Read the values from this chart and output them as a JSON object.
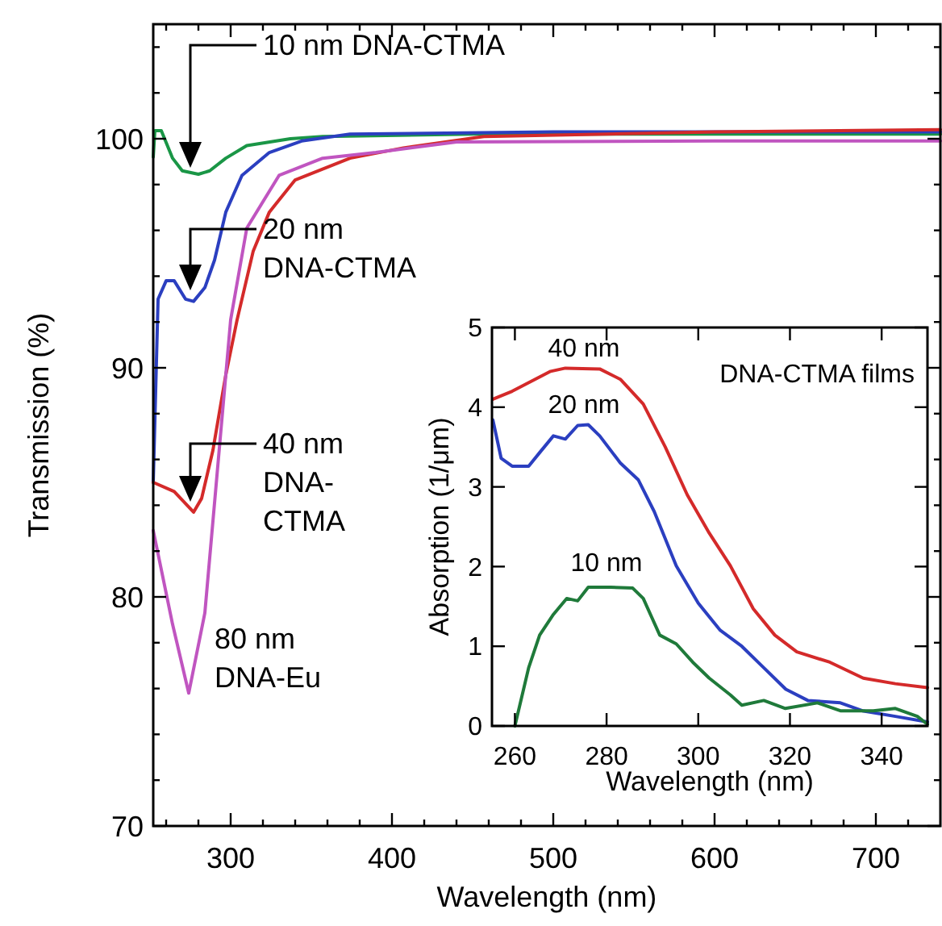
{
  "chart_data": [
    {
      "type": "line",
      "xlabel": "Wavelength (nm)",
      "ylabel": "Transmission (%)",
      "xlim": [
        252,
        740
      ],
      "ylim": [
        70,
        105
      ],
      "xticks": [
        {
          "value": 260,
          "label": null
        },
        {
          "value": 280,
          "label": null
        },
        300,
        {
          "value": 320,
          "label": null
        },
        {
          "value": 340,
          "label": null
        },
        {
          "value": 360,
          "label": null
        },
        {
          "value": 380,
          "label": null
        },
        400,
        {
          "value": 420,
          "label": null
        },
        {
          "value": 440,
          "label": null
        },
        {
          "value": 460,
          "label": null
        },
        {
          "value": 480,
          "label": null
        },
        500,
        {
          "value": 520,
          "label": null
        },
        {
          "value": 540,
          "label": null
        },
        {
          "value": 560,
          "label": null
        },
        {
          "value": 580,
          "label": null
        },
        600,
        {
          "value": 620,
          "label": null
        },
        {
          "value": 640,
          "label": null
        },
        {
          "value": 660,
          "label": null
        },
        {
          "value": 680,
          "label": null
        },
        700,
        {
          "value": 720,
          "label": null
        }
      ],
      "yticks": [
        70,
        {
          "value": 72,
          "label": null
        },
        {
          "value": 74,
          "label": null
        },
        {
          "value": 76,
          "label": null
        },
        {
          "value": 78,
          "label": null
        },
        80,
        {
          "value": 82,
          "label": null
        },
        {
          "value": 84,
          "label": null
        },
        {
          "value": 86,
          "label": null
        },
        {
          "value": 88,
          "label": null
        },
        90,
        {
          "value": 92,
          "label": null
        },
        {
          "value": 94,
          "label": null
        },
        {
          "value": 96,
          "label": null
        },
        {
          "value": 98,
          "label": null
        },
        100,
        {
          "value": 102,
          "label": null
        },
        {
          "value": 104,
          "label": null
        }
      ],
      "series": [
        {
          "color": "#1a9646",
          "x": [
            252,
            253,
            257,
            264,
            270,
            280,
            287,
            297,
            310,
            337,
            357,
            450,
            600,
            740
          ],
          "values": [
            99.2,
            100.35,
            100.35,
            99.15,
            98.6,
            98.45,
            98.6,
            99.15,
            99.7,
            100,
            100.1,
            100.2,
            100.2,
            100.2
          ]
        },
        {
          "color": "#2b3fc0",
          "x": [
            252,
            255,
            260,
            265,
            272,
            277,
            284,
            290,
            297,
            307,
            324,
            344,
            374,
            500,
            740
          ],
          "values": [
            85,
            93,
            93.8,
            93.8,
            93,
            92.9,
            93.5,
            94.7,
            96.8,
            98.4,
            99.4,
            99.9,
            100.2,
            100.3,
            100.3
          ]
        },
        {
          "color": "#d42a2a",
          "x": [
            252,
            265,
            277,
            282,
            289,
            297,
            304,
            314,
            324,
            340,
            374,
            407,
            457,
            600,
            740
          ],
          "values": [
            85,
            84.6,
            83.7,
            84.3,
            86.4,
            89.7,
            92.1,
            95.1,
            96.8,
            98.2,
            99.15,
            99.6,
            100.1,
            100.3,
            100.4
          ]
        },
        {
          "color": "#c055c0",
          "x": [
            252,
            264,
            274,
            284,
            290,
            294,
            300,
            310,
            330,
            357,
            390,
            440,
            600,
            740
          ],
          "values": [
            82.9,
            78.8,
            75.8,
            79.3,
            84.1,
            87.3,
            92.1,
            96.1,
            98.4,
            99.15,
            99.4,
            99.86,
            99.9,
            99.9
          ]
        }
      ],
      "annotations": [
        "10 nm DNA-CTMA",
        "20 nm\nDNA-CTMA",
        "40 nm\nDNA-\nCTMA",
        "80 nm\nDNA-Eu"
      ]
    },
    {
      "type": "line",
      "xlabel": "Wavelength (nm)",
      "ylabel": "Absorption (1/μm)",
      "xlim": [
        255,
        350
      ],
      "ylim": [
        0,
        5
      ],
      "xticks": [
        260,
        280,
        300,
        320,
        340
      ],
      "yticks": [
        0,
        1,
        2,
        3,
        4,
        5
      ],
      "series": [
        {
          "color": "#d42a2a",
          "x": [
            255.2,
            259.4,
            267.8,
            271,
            278.5,
            283,
            288,
            292.8,
            297.6,
            302.4,
            307,
            312,
            316.7,
            321.5,
            328.7,
            336,
            343,
            350
          ],
          "values": [
            4.1,
            4.2,
            4.45,
            4.49,
            4.48,
            4.35,
            4.04,
            3.5,
            2.9,
            2.42,
            2.01,
            1.47,
            1.14,
            0.93,
            0.8,
            0.6,
            0.53,
            0.48
          ]
        },
        {
          "color": "#2b3fc0",
          "x": [
            255.2,
            257,
            259.4,
            263,
            265.4,
            268.4,
            271,
            273.7,
            276,
            278.5,
            283,
            286.9,
            290.4,
            295.2,
            300,
            304.8,
            309.5,
            314.3,
            319.1,
            323.9,
            331,
            335.8,
            343,
            350
          ],
          "values": [
            3.84,
            3.36,
            3.26,
            3.26,
            3.43,
            3.64,
            3.6,
            3.77,
            3.78,
            3.64,
            3.3,
            3.09,
            2.69,
            2.01,
            1.54,
            1.2,
            1,
            0.73,
            0.46,
            0.32,
            0.29,
            0.19,
            0.12,
            0.05
          ]
        },
        {
          "color": "#1f7a3a",
          "x": [
            260,
            263,
            265.4,
            268.4,
            271.3,
            273.7,
            276,
            280.9,
            285.7,
            288,
            291.6,
            295.2,
            298.8,
            302.4,
            307,
            309.5,
            314.3,
            319,
            326,
            331,
            338.2,
            343,
            347.8,
            350
          ],
          "values": [
            0,
            0.73,
            1.14,
            1.4,
            1.6,
            1.57,
            1.74,
            1.74,
            1.73,
            1.6,
            1.14,
            1.03,
            0.8,
            0.6,
            0.39,
            0.26,
            0.32,
            0.22,
            0.29,
            0.19,
            0.19,
            0.22,
            0.12,
            0.02
          ]
        }
      ],
      "annotations": [
        "40 nm",
        "20 nm",
        "10 nm",
        "DNA-CTMA films"
      ]
    }
  ]
}
